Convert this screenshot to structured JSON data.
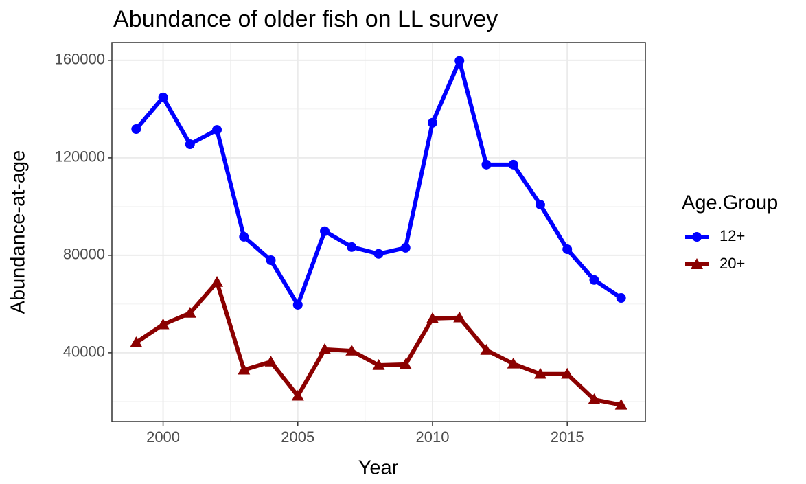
{
  "chart_data": {
    "type": "line",
    "title": "Abundance of older fish on LL survey",
    "x_label": "Year",
    "y_label": "Abundance-at-age",
    "x": [
      1999,
      2000,
      2001,
      2002,
      2003,
      2004,
      2005,
      2006,
      2007,
      2008,
      2009,
      2010,
      2011,
      2012,
      2013,
      2014,
      2015,
      2016,
      2017
    ],
    "series": [
      {
        "name": "12+",
        "color": "#0000ff",
        "marker": "circle",
        "values": [
          131800,
          144800,
          125600,
          131500,
          87600,
          78000,
          59700,
          89900,
          83400,
          80600,
          83100,
          134400,
          159800,
          117200,
          117200,
          100800,
          82500,
          69900,
          62500
        ]
      },
      {
        "name": "20+",
        "color": "#8b0000",
        "marker": "triangle",
        "values": [
          44200,
          51600,
          56300,
          69000,
          33000,
          36300,
          22300,
          41400,
          40800,
          34900,
          35200,
          54100,
          54400,
          41100,
          35500,
          31300,
          31300,
          20800,
          18600
        ]
      }
    ],
    "xlim": [
      1998.1,
      2017.9
    ],
    "ylim": [
      11800,
      167300
    ],
    "xticks": [
      2000,
      2005,
      2010,
      2015
    ],
    "yticks": [
      40000,
      80000,
      120000,
      160000
    ],
    "x_minor_ticks": [
      2002.5,
      2007.5,
      2012.5
    ],
    "y_minor_ticks": [
      20000,
      60000,
      100000,
      140000
    ],
    "grid": true,
    "legend_title": "Age.Group",
    "legend_position": "right"
  }
}
